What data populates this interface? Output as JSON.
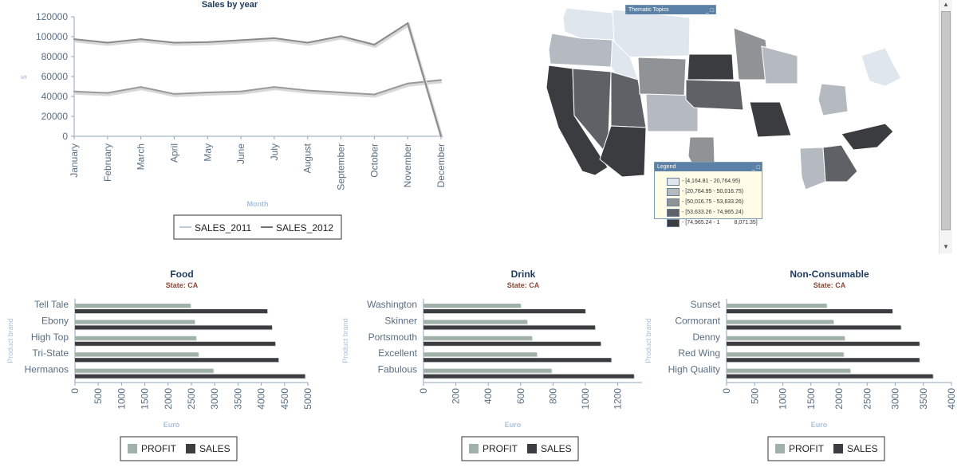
{
  "colors": {
    "axis": "#8fa6bb",
    "tick_label": "#5a6e82",
    "axis_title": "#a9c2dc",
    "title": "#1d3a5c",
    "subtitle": "#8a4a3a",
    "profit": "#9fb1a9",
    "sales": "#3b3d40",
    "line_2011": "#9a9a9a",
    "line_2012": "#8a8a8a"
  },
  "chart_data": [
    {
      "type": "line",
      "title": "Sales by year",
      "xlabel": "Month",
      "ylabel": "$",
      "categories": [
        "January",
        "February",
        "March",
        "April",
        "May",
        "June",
        "July",
        "August",
        "September",
        "October",
        "November",
        "December"
      ],
      "ylim": [
        0,
        120000
      ],
      "yticks": [
        "0",
        "20000",
        "40000",
        "60000",
        "80000",
        "100000",
        "120000"
      ],
      "series": [
        {
          "name": "SALES_2011",
          "values": [
            45000,
            43500,
            49500,
            42500,
            44000,
            45000,
            49500,
            46000,
            44000,
            42000,
            53000,
            56500
          ]
        },
        {
          "name": "SALES_2012",
          "values": [
            97500,
            94000,
            97500,
            94000,
            94500,
            96500,
            98500,
            94000,
            100500,
            92000,
            113500,
            0
          ]
        }
      ],
      "legend": "bottom",
      "grid": false
    },
    {
      "type": "bar",
      "orientation": "horizontal",
      "title": "Food",
      "subtitle": "State: CA",
      "xlabel": "Euro",
      "ylabel": "Product brand",
      "categories": [
        "Tell Tale",
        "Ebony",
        "High Top",
        "Tri-State",
        "Hermanos"
      ],
      "xlim": [
        0,
        5000
      ],
      "xticks": [
        "0",
        "500",
        "1000",
        "1500",
        "2000",
        "2500",
        "3000",
        "3500",
        "4000",
        "4500",
        "5000"
      ],
      "series": [
        {
          "name": "PROFIT",
          "values": [
            2480,
            2570,
            2600,
            2650,
            2970
          ]
        },
        {
          "name": "SALES",
          "values": [
            4130,
            4230,
            4300,
            4370,
            4940
          ]
        }
      ],
      "legend": "bottom"
    },
    {
      "type": "bar",
      "orientation": "horizontal",
      "title": "Drink",
      "subtitle": "State: CA",
      "xlabel": "Euro",
      "ylabel": "Product brand",
      "categories": [
        "Washington",
        "Skinner",
        "Portsmouth",
        "Excellent",
        "Fabulous"
      ],
      "xlim": [
        0,
        1350
      ],
      "xticks": [
        "0",
        "200",
        "400",
        "600",
        "800",
        "1000",
        "1200"
      ],
      "series": [
        {
          "name": "PROFIT",
          "values": [
            600,
            640,
            670,
            700,
            790
          ]
        },
        {
          "name": "SALES",
          "values": [
            1000,
            1060,
            1095,
            1160,
            1300
          ]
        }
      ],
      "legend": "bottom"
    },
    {
      "type": "bar",
      "orientation": "horizontal",
      "title": "Non-Consumable",
      "subtitle": "State: CA",
      "xlabel": "Euro",
      "ylabel": "Product brand",
      "categories": [
        "Sunset",
        "Cormorant",
        "Denny",
        "Red Wing",
        "High Quality"
      ],
      "xlim": [
        0,
        4000
      ],
      "xticks": [
        "0",
        "500",
        "1000",
        "1500",
        "2000",
        "2500",
        "3000",
        "3500",
        "4000"
      ],
      "series": [
        {
          "name": "PROFIT",
          "values": [
            1780,
            1900,
            2100,
            2080,
            2200
          ]
        },
        {
          "name": "SALES",
          "values": [
            2950,
            3100,
            3430,
            3430,
            3670
          ]
        }
      ],
      "legend": "bottom"
    }
  ],
  "map": {
    "window_title": "Thematic Topics",
    "legend_title": "Legend",
    "window_buttons": "_ □",
    "legend_ranges": [
      {
        "label": "- [4,164.81 - 20,764.95)",
        "color": "#dfe6ee"
      },
      {
        "label": "- [20,764.95 - 50,016.75)",
        "color": "#b4babf"
      },
      {
        "label": "- [50,016.75 - 53,633.26)",
        "color": "#909396"
      },
      {
        "label": "- [53,633.26 - 74,965.24)",
        "color": "#5e6165"
      },
      {
        "label": "- [74,965.24 - 1",
        "color": "#3a3c3f",
        "tail": "8,071.35]"
      }
    ]
  }
}
